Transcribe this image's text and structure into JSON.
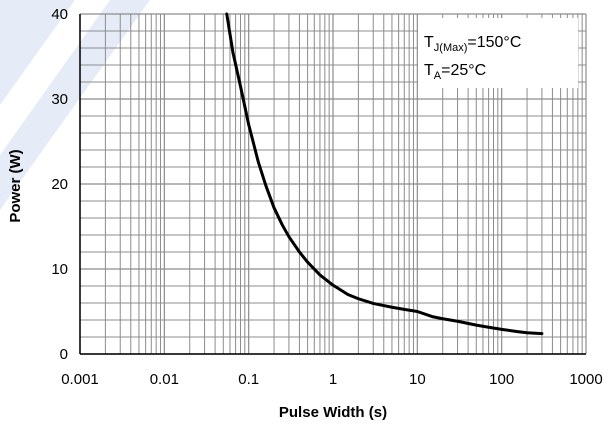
{
  "chart_data": {
    "type": "line",
    "xscale": "log",
    "xlim": [
      0.001,
      1000
    ],
    "ylim": [
      0,
      40
    ],
    "grid": true,
    "xlabel": "Pulse Width (s)",
    "ylabel": "Power (W)",
    "xtick_labels": [
      "0.001",
      "0.01",
      "0.1",
      "1",
      "10",
      "100",
      "1000"
    ],
    "ytick_labels": [
      "0",
      "10",
      "20",
      "30",
      "40"
    ],
    "annotation": {
      "line1_main": "T",
      "line1_sub": "J(Max)",
      "line1_rest": "=150°C",
      "line2_main": "T",
      "line2_sub": "A",
      "line2_rest": "=25°C"
    },
    "series": [
      {
        "x": [
          0.055,
          0.065,
          0.08,
          0.1,
          0.13,
          0.16,
          0.2,
          0.25,
          0.3,
          0.4,
          0.5,
          0.7,
          1,
          1.5,
          2,
          3,
          5,
          7,
          10,
          15,
          20,
          30,
          50,
          70,
          100,
          150,
          200,
          300
        ],
        "y": [
          40,
          35.5,
          31.5,
          27,
          22.6,
          19.8,
          17.2,
          15.2,
          13.8,
          12,
          10.8,
          9.3,
          8.1,
          7,
          6.5,
          5.95,
          5.5,
          5.25,
          5,
          4.4,
          4.15,
          3.85,
          3.4,
          3.15,
          2.9,
          2.65,
          2.5,
          2.4
        ]
      }
    ],
    "colors": {
      "curve": "#000000",
      "grid": "#8c8c8c",
      "axes": "#000000",
      "watermark": "#e6ecf7"
    }
  }
}
